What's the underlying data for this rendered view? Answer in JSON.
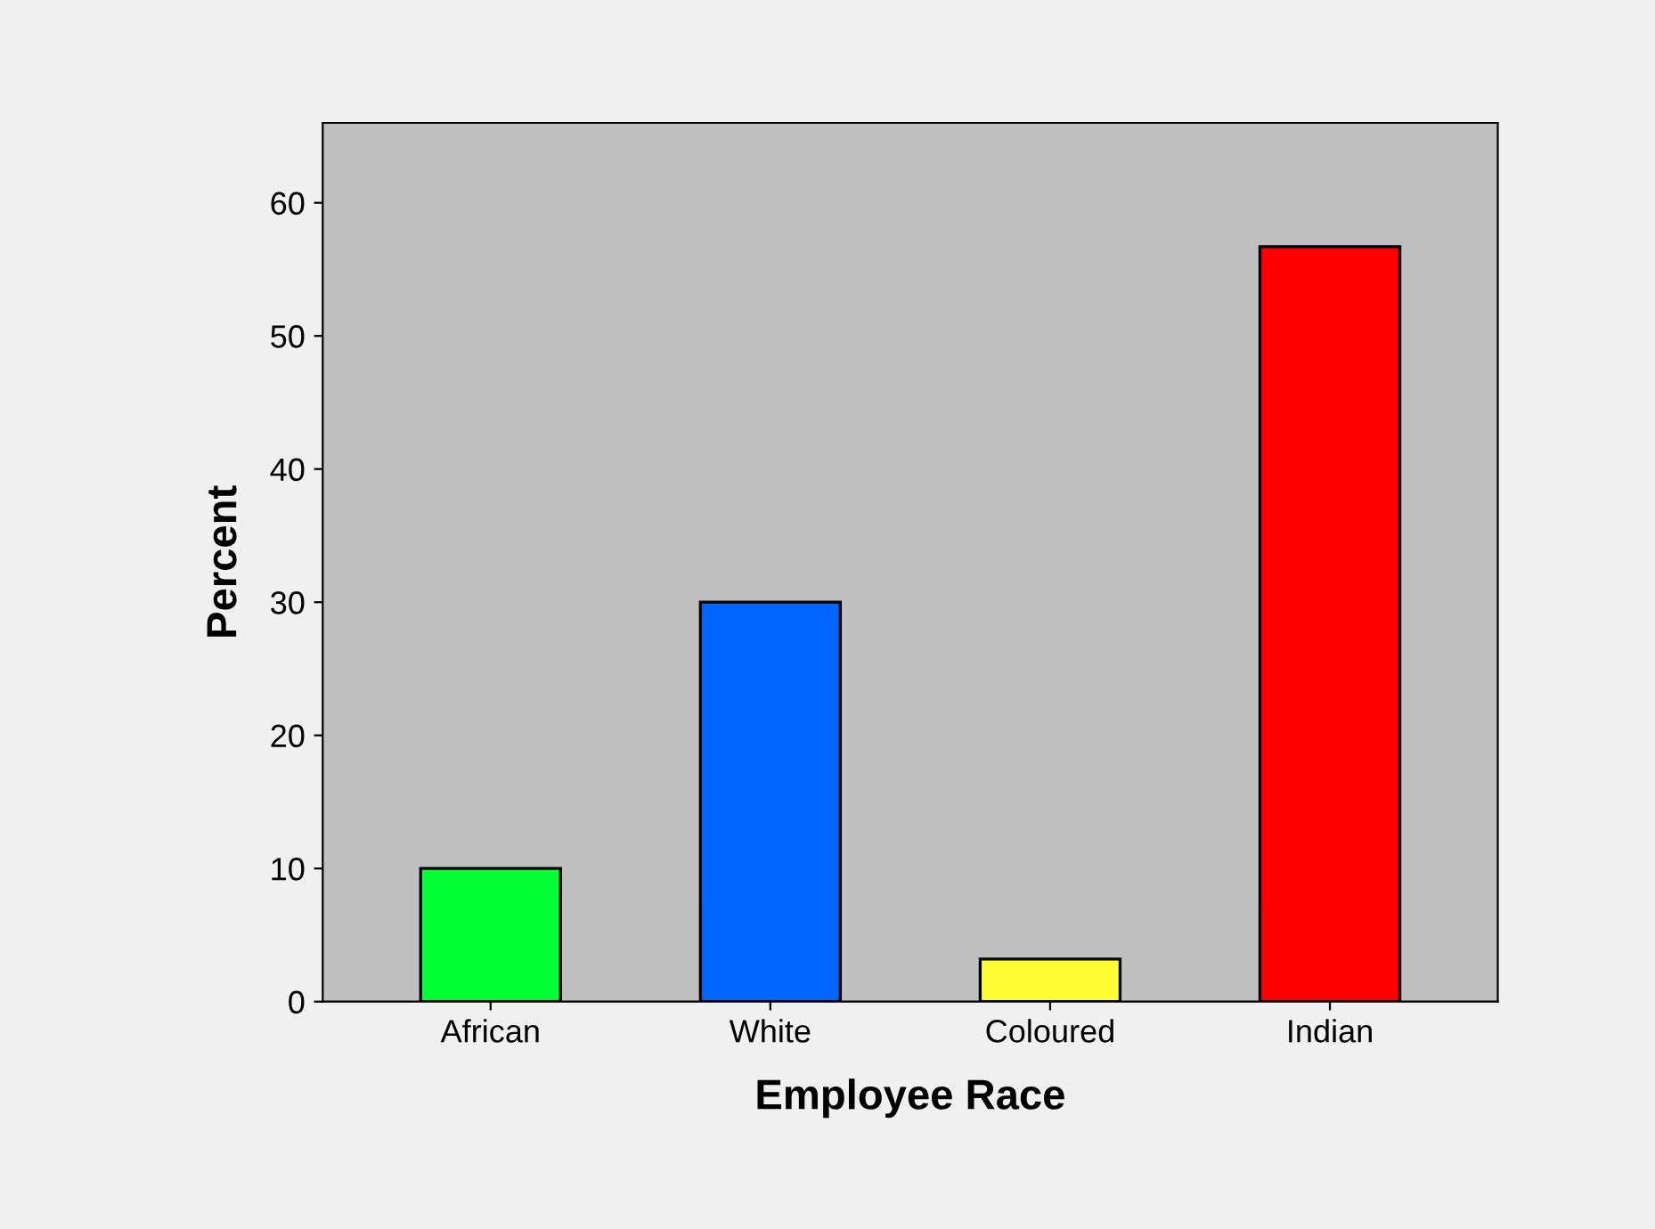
{
  "chart_data": {
    "type": "bar",
    "xlabel": "Employee Race",
    "ylabel": "Percent",
    "categories": [
      "African",
      "White",
      "Coloured",
      "Indian"
    ],
    "values": [
      10,
      30,
      3.2,
      56.7
    ],
    "colors": [
      "#00ff33",
      "#0066ff",
      "#ffff33",
      "#ff0000"
    ],
    "ylim": [
      0,
      66
    ],
    "yticks": [
      0,
      10,
      20,
      30,
      40,
      50,
      60
    ],
    "grid": false,
    "legend": false
  }
}
